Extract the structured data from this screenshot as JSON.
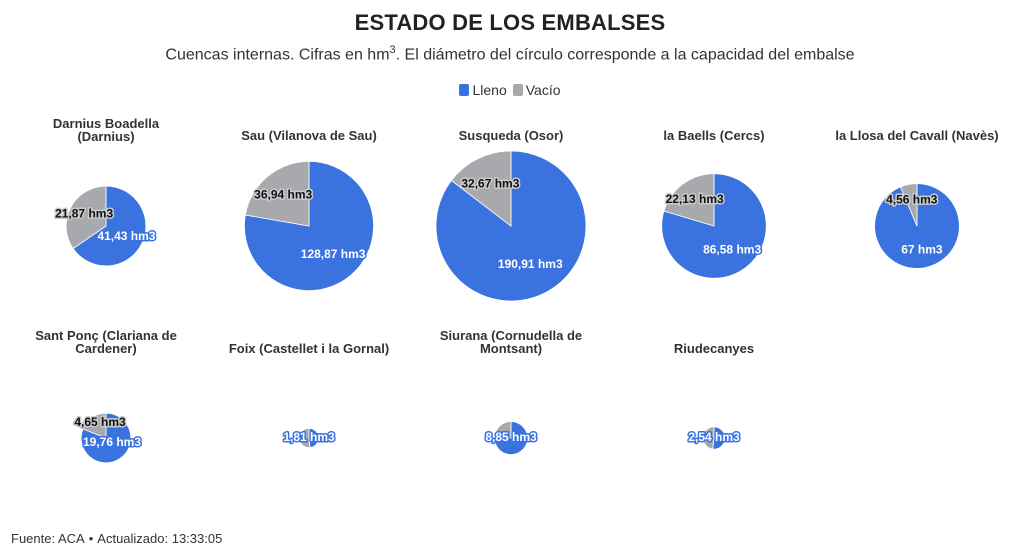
{
  "title": "ESTADO DE LOS EMBALSES",
  "subtitle_before": "Cuencas internas. Cifras en hm",
  "subtitle_sup": "3",
  "subtitle_after": ". El diámetro del círculo corresponde a la capacidad del embalse",
  "legend": [
    {
      "label": "Lleno",
      "color": "#3a73e0"
    },
    {
      "label": "Vacío",
      "color": "#a8a9ac"
    }
  ],
  "colors": {
    "lleno": "#3a73e0",
    "vacio": "#a8a9ac"
  },
  "footer": {
    "source": "Fuente: ACA",
    "separator": "•",
    "updated": "Actualizado: 13:33:05"
  },
  "chart_data": [
    {
      "type": "pie",
      "name_lines": [
        "Darnius Boadella",
        "(Darnius)"
      ],
      "categories": [
        "Lleno",
        "Vacío"
      ],
      "values": [
        41.43,
        21.87
      ],
      "labels": [
        "41,43 hm3",
        "21,87 hm3"
      ]
    },
    {
      "type": "pie",
      "name_lines": [
        "Sau (Vilanova de Sau)"
      ],
      "categories": [
        "Lleno",
        "Vacío"
      ],
      "values": [
        128.87,
        36.94
      ],
      "labels": [
        "128,87 hm3",
        "36,94 hm3"
      ]
    },
    {
      "type": "pie",
      "name_lines": [
        "Susqueda (Osor)"
      ],
      "categories": [
        "Lleno",
        "Vacío"
      ],
      "values": [
        190.91,
        32.67
      ],
      "labels": [
        "190,91 hm3",
        "32,67 hm3"
      ]
    },
    {
      "type": "pie",
      "name_lines": [
        "la Baells (Cercs)"
      ],
      "categories": [
        "Lleno",
        "Vacío"
      ],
      "values": [
        86.58,
        22.13
      ],
      "labels": [
        "86,58 hm3",
        "22,13 hm3"
      ]
    },
    {
      "type": "pie",
      "name_lines": [
        "la Llosa del Cavall (Navès)"
      ],
      "categories": [
        "Lleno",
        "Vacío"
      ],
      "values": [
        67,
        4.56
      ],
      "labels": [
        "67 hm3",
        "4,56 hm3"
      ]
    },
    {
      "type": "pie",
      "name_lines": [
        "Sant Ponç (Clariana de",
        "Cardener)"
      ],
      "categories": [
        "Lleno",
        "Vacío"
      ],
      "values": [
        19.76,
        4.65
      ],
      "labels": [
        "19,76 hm3",
        "4,65 hm3"
      ]
    },
    {
      "type": "pie",
      "name_lines": [
        "Foix (Castellet i la Gornal)"
      ],
      "categories": [
        "Lleno",
        "Vacío"
      ],
      "values": [
        1.81,
        1.93
      ],
      "labels": [
        "1,81 hm3",
        ""
      ]
    },
    {
      "type": "pie",
      "name_lines": [
        "Siurana (Cornudella de",
        "Montsant)"
      ],
      "categories": [
        "Lleno",
        "Vacío"
      ],
      "values": [
        8.85,
        2.05
      ],
      "labels": [
        "8,85 hm3",
        ""
      ]
    },
    {
      "type": "pie",
      "name_lines": [
        "Riudecanyes"
      ],
      "categories": [
        "Lleno",
        "Vacío"
      ],
      "values": [
        2.54,
        2.36
      ],
      "labels": [
        "2,54 hm3",
        ""
      ]
    }
  ]
}
